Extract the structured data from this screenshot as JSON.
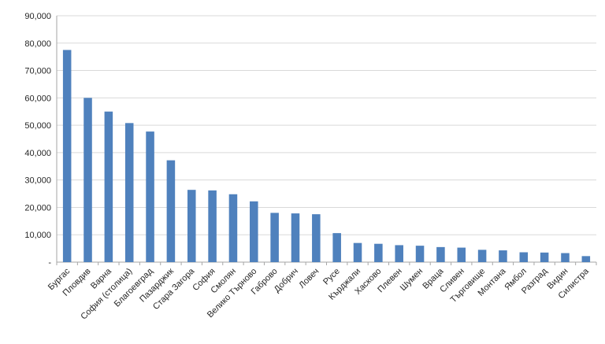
{
  "chart_data": {
    "type": "bar",
    "title": "",
    "xlabel": "",
    "ylabel": "",
    "ylim": [
      0,
      90000
    ],
    "yticks": [
      {
        "value": 0,
        "label": "-"
      },
      {
        "value": 10000,
        "label": "10,000"
      },
      {
        "value": 20000,
        "label": "20,000"
      },
      {
        "value": 30000,
        "label": "30,000"
      },
      {
        "value": 40000,
        "label": "40,000"
      },
      {
        "value": 50000,
        "label": "50,000"
      },
      {
        "value": 60000,
        "label": "60,000"
      },
      {
        "value": 70000,
        "label": "70,000"
      },
      {
        "value": 80000,
        "label": "80,000"
      },
      {
        "value": 90000,
        "label": "90,000"
      }
    ],
    "grid": true,
    "legend": "none",
    "bar_color": "#4F81BD",
    "categories": [
      "Бургас",
      "Пловдив",
      "Варна",
      "София (столица)",
      "Благоевград",
      "Пазарджик",
      "Стара Загора",
      "София",
      "Смолян",
      "Велико Търново",
      "Габрово",
      "Добрич",
      "Ловеч",
      "Русе",
      "Кърджали",
      "Хасково",
      "Плевен",
      "Шумен",
      "Враца",
      "Сливен",
      "Търговище",
      "Монтана",
      "Ямбол",
      "Разград",
      "Видин",
      "Силистра"
    ],
    "values": [
      77500,
      60000,
      55000,
      50800,
      47700,
      37200,
      26400,
      26200,
      24800,
      22200,
      18000,
      17800,
      17500,
      10600,
      7000,
      6700,
      6200,
      6000,
      5500,
      5300,
      4500,
      4300,
      3600,
      3500,
      3300,
      2200
    ]
  }
}
